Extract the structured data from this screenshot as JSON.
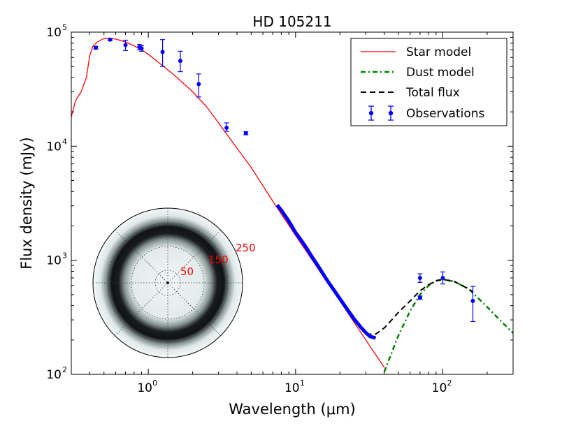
{
  "chart_data": {
    "type": "scatter",
    "title": "HD 105211",
    "xlabel": "Wavelength (μm)",
    "ylabel": "Flux density (mJy)",
    "xscale": "log",
    "yscale": "log",
    "xlim": [
      0.3,
      300
    ],
    "ylim": [
      100,
      100000
    ],
    "xticks": [
      {
        "value": 1,
        "base": "10",
        "exp": "0"
      },
      {
        "value": 10,
        "base": "10",
        "exp": "1"
      },
      {
        "value": 100,
        "base": "10",
        "exp": "2"
      }
    ],
    "yticks": [
      {
        "value": 100,
        "base": "10",
        "exp": "2"
      },
      {
        "value": 1000,
        "base": "10",
        "exp": "3"
      },
      {
        "value": 10000,
        "base": "10",
        "exp": "4"
      },
      {
        "value": 100000,
        "base": "10",
        "exp": "5"
      }
    ],
    "legend_position": "top-right",
    "legend": [
      {
        "label": "Star model",
        "style": "solid",
        "color": "#ff0000"
      },
      {
        "label": "Dust model",
        "style": "dashdot",
        "color": "#008000"
      },
      {
        "label": "Total flux",
        "style": "dashed",
        "color": "#000000"
      },
      {
        "label": "Observations",
        "style": "errorbar",
        "color": "#0000ff"
      }
    ],
    "star_model": {
      "color": "#ff0000",
      "x": [
        0.3,
        0.32,
        0.35,
        0.38,
        0.4,
        0.42,
        0.45,
        0.5,
        0.55,
        0.6,
        0.7,
        0.8,
        0.9,
        1.0,
        1.2,
        1.5,
        2.0,
        2.5,
        3.0,
        4.0,
        5.0,
        7.0,
        10,
        15,
        20,
        30,
        40
      ],
      "y": [
        18000,
        25000,
        30000,
        40000,
        62000,
        75000,
        82000,
        88000,
        88000,
        87000,
        82000,
        76000,
        70000,
        64000,
        53000,
        42000,
        30000,
        22000,
        16000,
        9600,
        6500,
        3300,
        1650,
        760,
        440,
        200,
        115
      ]
    },
    "dust_model": {
      "color": "#008000",
      "x": [
        40,
        45,
        50,
        60,
        70,
        80,
        90,
        100,
        120,
        150,
        200,
        250,
        300
      ],
      "y": [
        105,
        155,
        220,
        360,
        500,
        600,
        660,
        680,
        650,
        560,
        390,
        290,
        230
      ]
    },
    "total_flux": {
      "color": "#000000",
      "x": [
        30,
        35,
        40,
        45,
        50,
        60,
        70,
        80,
        90,
        100,
        120,
        150,
        160
      ],
      "y": [
        225,
        225,
        255,
        300,
        350,
        440,
        540,
        610,
        660,
        680,
        650,
        560,
        530
      ]
    },
    "observations": {
      "color": "#0000ff",
      "points": [
        {
          "x": 0.44,
          "y": 73000,
          "lo": 71000,
          "hi": 75000
        },
        {
          "x": 0.55,
          "y": 86000,
          "lo": 84000,
          "hi": 88000
        },
        {
          "x": 0.7,
          "y": 77000,
          "lo": 69000,
          "hi": 85000
        },
        {
          "x": 0.87,
          "y": 74000,
          "lo": 70000,
          "hi": 78000
        },
        {
          "x": 0.9,
          "y": 72000,
          "lo": 68000,
          "hi": 76000
        },
        {
          "x": 1.25,
          "y": 67000,
          "lo": 50000,
          "hi": 86000
        },
        {
          "x": 1.65,
          "y": 56000,
          "lo": 45000,
          "hi": 68000
        },
        {
          "x": 2.2,
          "y": 35000,
          "lo": 27000,
          "hi": 43000
        },
        {
          "x": 3.4,
          "y": 14500,
          "lo": 13500,
          "hi": 16000
        },
        {
          "x": 4.6,
          "y": 13000,
          "lo": 12600,
          "hi": 13400
        },
        {
          "x": 70,
          "y": 700,
          "lo": 640,
          "hi": 760
        },
        {
          "x": 70,
          "y": 470,
          "lo": 455,
          "hi": 485
        },
        {
          "x": 100,
          "y": 700,
          "lo": 620,
          "hi": 790
        },
        {
          "x": 160,
          "y": 440,
          "lo": 290,
          "hi": 590
        }
      ],
      "spectrum": {
        "x": [
          7.5,
          8,
          9,
          10,
          11,
          12,
          13,
          14,
          15,
          16,
          18,
          20,
          22,
          25,
          28,
          30,
          32,
          35
        ],
        "y": [
          3050,
          2750,
          2200,
          1750,
          1480,
          1250,
          1060,
          920,
          800,
          700,
          560,
          460,
          385,
          305,
          255,
          232,
          215,
          208
        ]
      }
    },
    "inset": {
      "type": "polar_image",
      "radial_labels": [
        "50",
        "150",
        "250"
      ],
      "label_color": "#ff0000"
    }
  }
}
